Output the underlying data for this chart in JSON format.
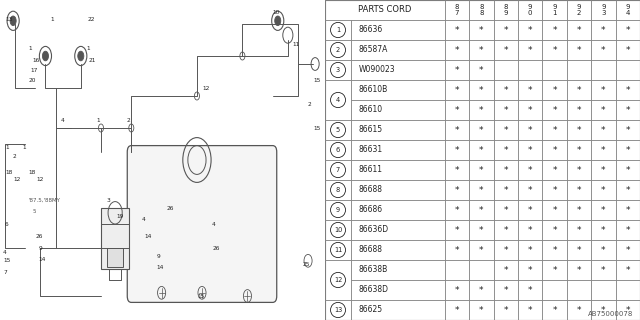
{
  "watermark": "AB75000078",
  "bg_color": "#ffffff",
  "header_cols": [
    "8\n7",
    "8\n8",
    "8\n9",
    "9\n0",
    "9\n1",
    "9\n2",
    "9\n3",
    "9\n4"
  ],
  "rows": [
    {
      "num": "1",
      "part": "86636",
      "marks": [
        1,
        1,
        1,
        1,
        1,
        1,
        1,
        1
      ],
      "span": 1,
      "first": true
    },
    {
      "num": "2",
      "part": "86587A",
      "marks": [
        1,
        1,
        1,
        1,
        1,
        1,
        1,
        1
      ],
      "span": 1,
      "first": true
    },
    {
      "num": "3",
      "part": "W090023",
      "marks": [
        1,
        1,
        0,
        0,
        0,
        0,
        0,
        0
      ],
      "span": 1,
      "first": true
    },
    {
      "num": "4",
      "part": "86610B",
      "marks": [
        1,
        1,
        1,
        1,
        1,
        1,
        1,
        1
      ],
      "span": 2,
      "first": true
    },
    {
      "num": "4",
      "part": "86610",
      "marks": [
        1,
        1,
        1,
        1,
        1,
        1,
        1,
        1
      ],
      "span": 2,
      "first": false
    },
    {
      "num": "5",
      "part": "86615",
      "marks": [
        1,
        1,
        1,
        1,
        1,
        1,
        1,
        1
      ],
      "span": 1,
      "first": true
    },
    {
      "num": "6",
      "part": "86631",
      "marks": [
        1,
        1,
        1,
        1,
        1,
        1,
        1,
        1
      ],
      "span": 1,
      "first": true
    },
    {
      "num": "7",
      "part": "86611",
      "marks": [
        1,
        1,
        1,
        1,
        1,
        1,
        1,
        1
      ],
      "span": 1,
      "first": true
    },
    {
      "num": "8",
      "part": "86688",
      "marks": [
        1,
        1,
        1,
        1,
        1,
        1,
        1,
        1
      ],
      "span": 1,
      "first": true
    },
    {
      "num": "9",
      "part": "86686",
      "marks": [
        1,
        1,
        1,
        1,
        1,
        1,
        1,
        1
      ],
      "span": 1,
      "first": true
    },
    {
      "num": "10",
      "part": "86636D",
      "marks": [
        1,
        1,
        1,
        1,
        1,
        1,
        1,
        1
      ],
      "span": 1,
      "first": true
    },
    {
      "num": "11",
      "part": "86688",
      "marks": [
        1,
        1,
        1,
        1,
        1,
        1,
        1,
        1
      ],
      "span": 1,
      "first": true
    },
    {
      "num": "12",
      "part": "86638B",
      "marks": [
        0,
        0,
        1,
        1,
        1,
        1,
        1,
        1
      ],
      "span": 2,
      "first": true
    },
    {
      "num": "12",
      "part": "86638D",
      "marks": [
        1,
        1,
        1,
        1,
        0,
        0,
        0,
        0
      ],
      "span": 2,
      "first": false
    },
    {
      "num": "13",
      "part": "86625",
      "marks": [
        1,
        1,
        1,
        1,
        1,
        1,
        1,
        1
      ],
      "span": 1,
      "first": true
    }
  ],
  "line_color": "#888888",
  "text_color": "#222222",
  "diag_color": "#555555"
}
